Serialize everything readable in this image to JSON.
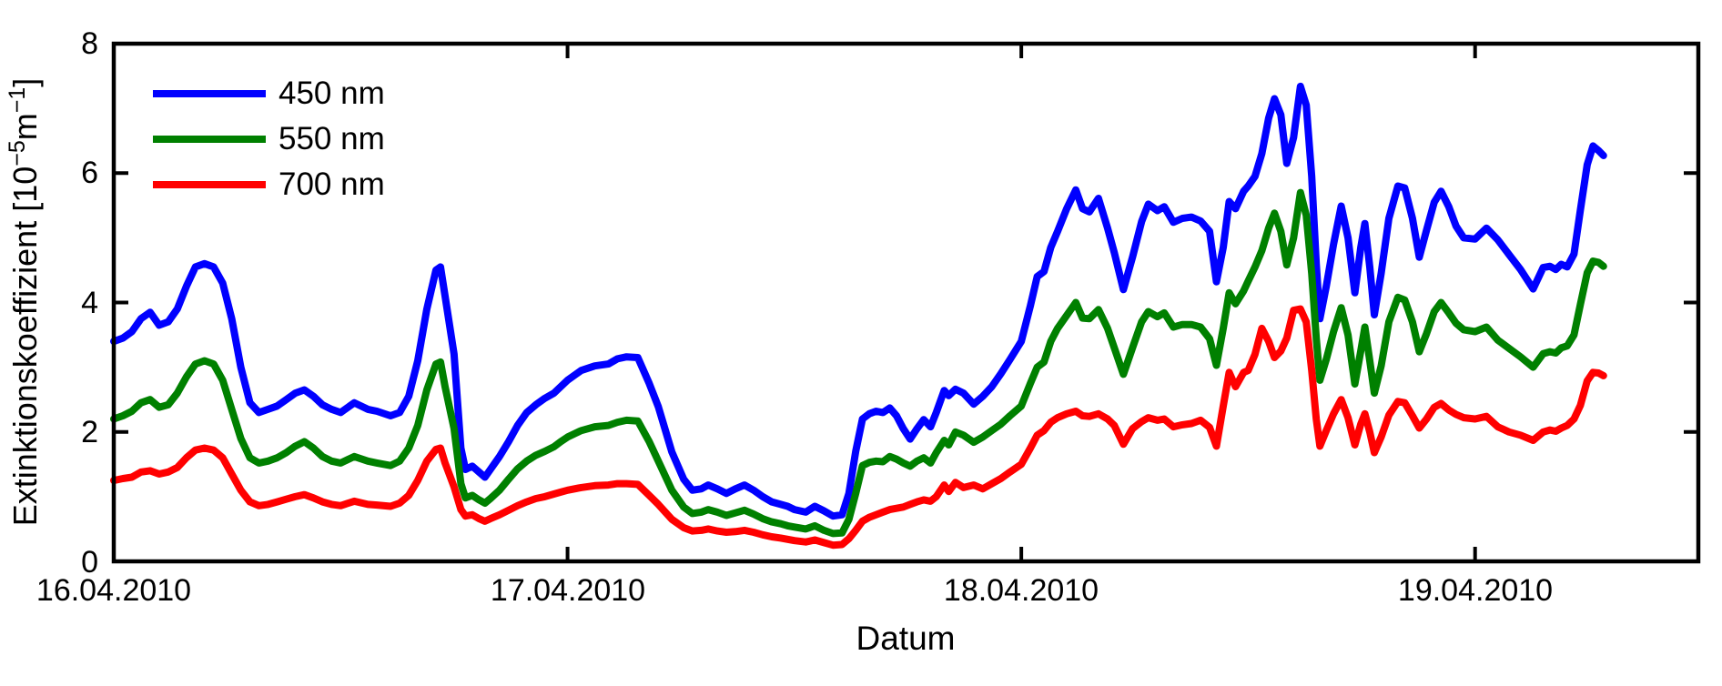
{
  "figure": {
    "background": "#FFFFFF",
    "axis_color": "#000000"
  },
  "axes": {
    "xlabel": "Datum",
    "ylabel": {
      "prefix": "Extinktionskoeffizient [10",
      "sup1": "−5",
      "mid": "m",
      "sup2": "−1",
      "suffix": "]"
    },
    "x_ticks": [
      {
        "label": "16.04.2010",
        "t": 0
      },
      {
        "label": "17.04.2010",
        "t": 1
      },
      {
        "label": "18.04.2010",
        "t": 2
      },
      {
        "label": "19.04.2010",
        "t": 3
      }
    ],
    "y_ticks": [
      {
        "label": "0",
        "value": 0
      },
      {
        "label": "2",
        "value": 2
      },
      {
        "label": "4",
        "value": 4
      },
      {
        "label": "6",
        "value": 6
      },
      {
        "label": "8",
        "value": 8
      }
    ]
  },
  "legend": {
    "items": [
      {
        "label": "450 nm",
        "color": "#0000FF"
      },
      {
        "label": "550 nm",
        "color": "#008000"
      },
      {
        "label": "700 nm",
        "color": "#FF0000"
      }
    ]
  },
  "chart_data": {
    "type": "line",
    "title": "",
    "xlabel": "Datum",
    "ylabel": "Extinktionskoeffizient [10^-5 m^-1]",
    "x_unit": "days since 16.04.2010 00:00",
    "xlim": [
      0,
      3.492
    ],
    "ylim": [
      0,
      8
    ],
    "grid": false,
    "legend_position": "upper-left-inside",
    "x": [
      0.0,
      0.02,
      0.04,
      0.06,
      0.08,
      0.1,
      0.12,
      0.14,
      0.16,
      0.18,
      0.2,
      0.22,
      0.24,
      0.26,
      0.28,
      0.3,
      0.32,
      0.34,
      0.36,
      0.38,
      0.4,
      0.42,
      0.44,
      0.46,
      0.48,
      0.5,
      0.53,
      0.56,
      0.58,
      0.61,
      0.63,
      0.65,
      0.67,
      0.69,
      0.71,
      0.72,
      0.73,
      0.75,
      0.765,
      0.775,
      0.79,
      0.805,
      0.818,
      0.83,
      0.85,
      0.87,
      0.89,
      0.91,
      0.93,
      0.95,
      0.97,
      0.985,
      1.0,
      1.03,
      1.06,
      1.09,
      1.11,
      1.13,
      1.155,
      1.18,
      1.2,
      1.23,
      1.256,
      1.275,
      1.295,
      1.31,
      1.33,
      1.35,
      1.37,
      1.39,
      1.41,
      1.43,
      1.45,
      1.47,
      1.485,
      1.5,
      1.525,
      1.545,
      1.565,
      1.585,
      1.605,
      1.62,
      1.635,
      1.65,
      1.665,
      1.68,
      1.695,
      1.71,
      1.725,
      1.74,
      1.755,
      1.77,
      1.785,
      1.8,
      1.8125,
      1.83,
      1.84,
      1.855,
      1.8725,
      1.895,
      1.915,
      1.935,
      1.955,
      1.975,
      2.0,
      2.02,
      2.035,
      2.05,
      2.065,
      2.08,
      2.1,
      2.12,
      2.135,
      2.15,
      2.17,
      2.19,
      2.205,
      2.225,
      2.245,
      2.265,
      2.28,
      2.3,
      2.315,
      2.335,
      2.355,
      2.375,
      2.395,
      2.415,
      2.43,
      2.445,
      2.458,
      2.472,
      2.49,
      2.5,
      2.515,
      2.53,
      2.545,
      2.558,
      2.572,
      2.585,
      2.6,
      2.615,
      2.628,
      2.64,
      2.65,
      2.658,
      2.672,
      2.688,
      2.705,
      2.72,
      2.735,
      2.748,
      2.757,
      2.768,
      2.778,
      2.793,
      2.81,
      2.83,
      2.845,
      2.862,
      2.877,
      2.893,
      2.91,
      2.925,
      2.942,
      2.958,
      2.975,
      3.0,
      3.025,
      3.05,
      3.075,
      3.1,
      3.128,
      3.15,
      3.165,
      3.178,
      3.19,
      3.203,
      3.218,
      3.232,
      3.247,
      3.26,
      3.272,
      3.283
    ],
    "series": [
      {
        "name": "450 nm",
        "color": "#0000FF",
        "values": [
          3.4,
          3.45,
          3.55,
          3.75,
          3.85,
          3.65,
          3.7,
          3.9,
          4.25,
          4.55,
          4.6,
          4.55,
          4.3,
          3.75,
          3.0,
          2.45,
          2.3,
          2.35,
          2.4,
          2.5,
          2.6,
          2.65,
          2.55,
          2.42,
          2.35,
          2.3,
          2.45,
          2.35,
          2.32,
          2.25,
          2.3,
          2.55,
          3.1,
          3.9,
          4.5,
          4.55,
          4.1,
          3.2,
          1.75,
          1.42,
          1.47,
          1.38,
          1.3,
          1.42,
          1.62,
          1.85,
          2.1,
          2.3,
          2.42,
          2.52,
          2.6,
          2.7,
          2.8,
          2.95,
          3.02,
          3.05,
          3.13,
          3.16,
          3.15,
          2.75,
          2.39,
          1.69,
          1.27,
          1.1,
          1.12,
          1.18,
          1.12,
          1.05,
          1.12,
          1.18,
          1.1,
          1.0,
          0.92,
          0.88,
          0.85,
          0.8,
          0.76,
          0.85,
          0.78,
          0.7,
          0.72,
          1.05,
          1.7,
          2.2,
          2.28,
          2.32,
          2.3,
          2.37,
          2.25,
          2.05,
          1.89,
          2.05,
          2.19,
          2.08,
          2.3,
          2.64,
          2.56,
          2.66,
          2.6,
          2.43,
          2.55,
          2.7,
          2.9,
          3.12,
          3.4,
          3.95,
          4.4,
          4.48,
          4.85,
          5.1,
          5.45,
          5.74,
          5.45,
          5.4,
          5.61,
          5.15,
          4.77,
          4.2,
          4.7,
          5.25,
          5.52,
          5.42,
          5.48,
          5.24,
          5.3,
          5.32,
          5.26,
          5.1,
          4.32,
          4.85,
          5.56,
          5.45,
          5.72,
          5.8,
          5.95,
          6.3,
          6.85,
          7.15,
          6.9,
          6.15,
          6.55,
          7.34,
          7.05,
          5.95,
          4.6,
          3.75,
          4.25,
          4.9,
          5.49,
          5.0,
          4.15,
          4.85,
          5.22,
          4.55,
          3.81,
          4.45,
          5.3,
          5.8,
          5.77,
          5.3,
          4.7,
          5.12,
          5.55,
          5.72,
          5.48,
          5.18,
          5.0,
          4.98,
          5.15,
          4.97,
          4.74,
          4.51,
          4.21,
          4.54,
          4.56,
          4.51,
          4.59,
          4.55,
          4.75,
          5.43,
          6.13,
          6.42,
          6.35,
          6.27
        ]
      },
      {
        "name": "550 nm",
        "color": "#008000",
        "values": [
          2.2,
          2.25,
          2.32,
          2.45,
          2.5,
          2.38,
          2.42,
          2.6,
          2.85,
          3.05,
          3.1,
          3.05,
          2.8,
          2.35,
          1.9,
          1.6,
          1.52,
          1.55,
          1.6,
          1.68,
          1.78,
          1.85,
          1.75,
          1.62,
          1.55,
          1.52,
          1.62,
          1.55,
          1.52,
          1.48,
          1.55,
          1.75,
          2.1,
          2.65,
          3.05,
          3.08,
          2.7,
          2.05,
          1.2,
          0.98,
          1.02,
          0.95,
          0.9,
          0.97,
          1.1,
          1.27,
          1.43,
          1.55,
          1.64,
          1.7,
          1.77,
          1.85,
          1.92,
          2.02,
          2.08,
          2.1,
          2.15,
          2.18,
          2.17,
          1.85,
          1.55,
          1.1,
          0.84,
          0.74,
          0.76,
          0.8,
          0.76,
          0.71,
          0.75,
          0.79,
          0.73,
          0.66,
          0.61,
          0.58,
          0.55,
          0.53,
          0.5,
          0.55,
          0.48,
          0.43,
          0.44,
          0.65,
          1.05,
          1.48,
          1.53,
          1.55,
          1.54,
          1.62,
          1.58,
          1.52,
          1.47,
          1.55,
          1.6,
          1.52,
          1.68,
          1.87,
          1.8,
          2.0,
          1.95,
          1.84,
          1.92,
          2.02,
          2.12,
          2.25,
          2.4,
          2.75,
          3.0,
          3.08,
          3.4,
          3.6,
          3.8,
          4.0,
          3.76,
          3.75,
          3.89,
          3.6,
          3.3,
          2.89,
          3.3,
          3.7,
          3.86,
          3.78,
          3.84,
          3.62,
          3.66,
          3.66,
          3.62,
          3.44,
          3.03,
          3.6,
          4.15,
          3.98,
          4.18,
          4.33,
          4.55,
          4.8,
          5.15,
          5.38,
          5.1,
          4.58,
          5.0,
          5.7,
          5.35,
          4.45,
          3.45,
          2.8,
          3.12,
          3.55,
          3.92,
          3.5,
          2.74,
          3.25,
          3.62,
          3.1,
          2.6,
          3.02,
          3.7,
          4.08,
          4.04,
          3.7,
          3.24,
          3.52,
          3.86,
          4.0,
          3.84,
          3.68,
          3.58,
          3.55,
          3.62,
          3.42,
          3.29,
          3.16,
          3.0,
          3.21,
          3.24,
          3.22,
          3.3,
          3.33,
          3.5,
          3.97,
          4.46,
          4.64,
          4.62,
          4.56
        ]
      },
      {
        "name": "700 nm",
        "color": "#FF0000",
        "values": [
          1.25,
          1.28,
          1.3,
          1.38,
          1.4,
          1.35,
          1.38,
          1.45,
          1.6,
          1.72,
          1.75,
          1.72,
          1.6,
          1.35,
          1.1,
          0.92,
          0.86,
          0.88,
          0.92,
          0.96,
          1.0,
          1.03,
          0.98,
          0.92,
          0.88,
          0.86,
          0.93,
          0.88,
          0.87,
          0.85,
          0.9,
          1.02,
          1.25,
          1.55,
          1.73,
          1.75,
          1.52,
          1.15,
          0.8,
          0.7,
          0.72,
          0.66,
          0.62,
          0.66,
          0.72,
          0.79,
          0.86,
          0.92,
          0.97,
          1.0,
          1.04,
          1.07,
          1.1,
          1.14,
          1.17,
          1.18,
          1.2,
          1.2,
          1.19,
          1.02,
          0.88,
          0.65,
          0.52,
          0.47,
          0.48,
          0.5,
          0.47,
          0.45,
          0.46,
          0.48,
          0.45,
          0.41,
          0.38,
          0.36,
          0.34,
          0.32,
          0.3,
          0.33,
          0.29,
          0.25,
          0.26,
          0.35,
          0.48,
          0.62,
          0.68,
          0.72,
          0.76,
          0.8,
          0.82,
          0.84,
          0.88,
          0.92,
          0.95,
          0.93,
          1.0,
          1.18,
          1.08,
          1.22,
          1.14,
          1.18,
          1.12,
          1.2,
          1.28,
          1.38,
          1.5,
          1.75,
          1.95,
          2.02,
          2.15,
          2.22,
          2.28,
          2.32,
          2.25,
          2.24,
          2.28,
          2.2,
          2.1,
          1.81,
          2.05,
          2.16,
          2.22,
          2.18,
          2.2,
          2.08,
          2.11,
          2.13,
          2.18,
          2.07,
          1.78,
          2.4,
          2.92,
          2.7,
          2.92,
          2.95,
          3.2,
          3.6,
          3.4,
          3.15,
          3.25,
          3.45,
          3.88,
          3.9,
          3.7,
          2.95,
          2.2,
          1.78,
          2.02,
          2.28,
          2.5,
          2.22,
          1.8,
          2.12,
          2.28,
          2.0,
          1.68,
          1.92,
          2.26,
          2.47,
          2.45,
          2.25,
          2.06,
          2.2,
          2.38,
          2.44,
          2.34,
          2.27,
          2.22,
          2.2,
          2.24,
          2.08,
          2.0,
          1.95,
          1.87,
          2.0,
          2.03,
          2.01,
          2.06,
          2.1,
          2.2,
          2.41,
          2.79,
          2.92,
          2.91,
          2.87
        ]
      }
    ]
  }
}
